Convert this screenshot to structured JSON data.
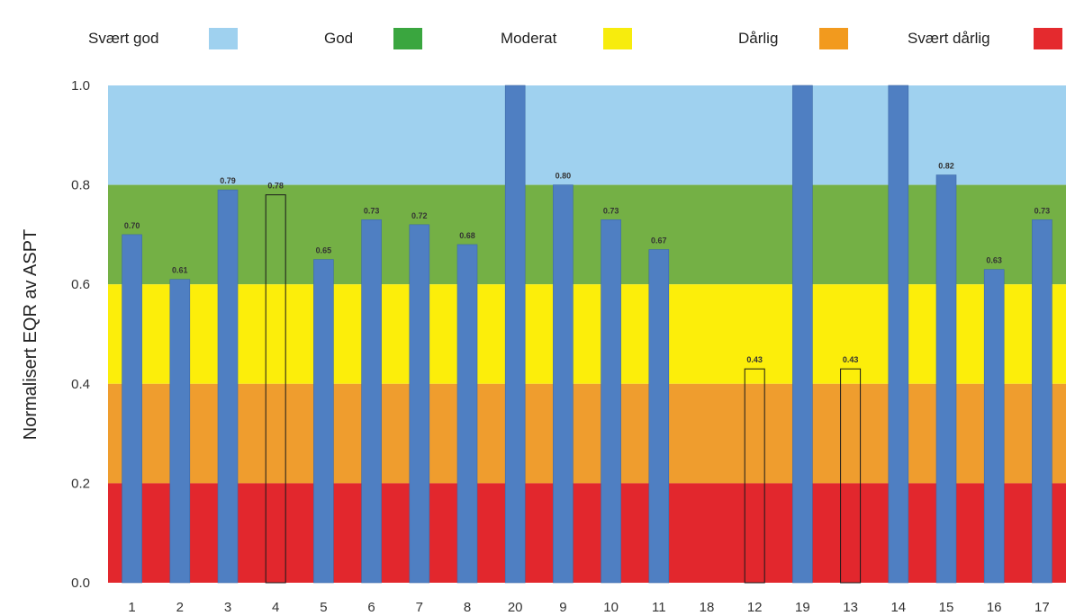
{
  "legend": {
    "items": [
      {
        "label": "Svært god",
        "color": "#9fd1ef"
      },
      {
        "label": "God",
        "color": "#3aa63f"
      },
      {
        "label": "Moderat",
        "color": "#f7ec0d"
      },
      {
        "label": "Dårlig",
        "color": "#f29a1e"
      },
      {
        "label": "Svært dårlig",
        "color": "#e42a2e"
      }
    ]
  },
  "chart_data": {
    "type": "bar",
    "ylabel": "Normalisert EQR av ASPT",
    "ylim": [
      0,
      1.0
    ],
    "yticks": [
      "0.0",
      "0.2",
      "0.4",
      "0.6",
      "0.8",
      "1.0"
    ],
    "bands": [
      {
        "from": 0.8,
        "to": 1.0,
        "color": "#9fd1ef"
      },
      {
        "from": 0.6,
        "to": 0.8,
        "color": "#74b045"
      },
      {
        "from": 0.4,
        "to": 0.6,
        "color": "#fcee0a"
      },
      {
        "from": 0.2,
        "to": 0.4,
        "color": "#ef9d2e"
      },
      {
        "from": 0.0,
        "to": 0.2,
        "color": "#e2272d"
      }
    ],
    "bar_color": "#4f7fc2",
    "categories": [
      "1",
      "2",
      "3",
      "4",
      "5",
      "6",
      "7",
      "8",
      "20",
      "9",
      "10",
      "11",
      "18",
      "12",
      "19",
      "13",
      "14",
      "15",
      "16",
      "17"
    ],
    "values": [
      0.7,
      0.61,
      0.79,
      0.78,
      0.65,
      0.73,
      0.72,
      0.68,
      1.0,
      0.8,
      0.73,
      0.67,
      null,
      0.43,
      1.0,
      0.43,
      1.0,
      0.82,
      0.63,
      0.73
    ],
    "labels": [
      "0.70",
      "0.61",
      "0.79",
      "0.78",
      "0.65",
      "0.73",
      "0.72",
      "0.68",
      "",
      "0.80",
      "0.73",
      "0.67",
      "",
      "0.43",
      "",
      "0.43",
      "",
      "0.82",
      "0.63",
      "0.73"
    ],
    "hollow": [
      false,
      false,
      false,
      true,
      false,
      false,
      false,
      false,
      false,
      false,
      false,
      false,
      false,
      true,
      false,
      true,
      false,
      false,
      false,
      false
    ]
  }
}
